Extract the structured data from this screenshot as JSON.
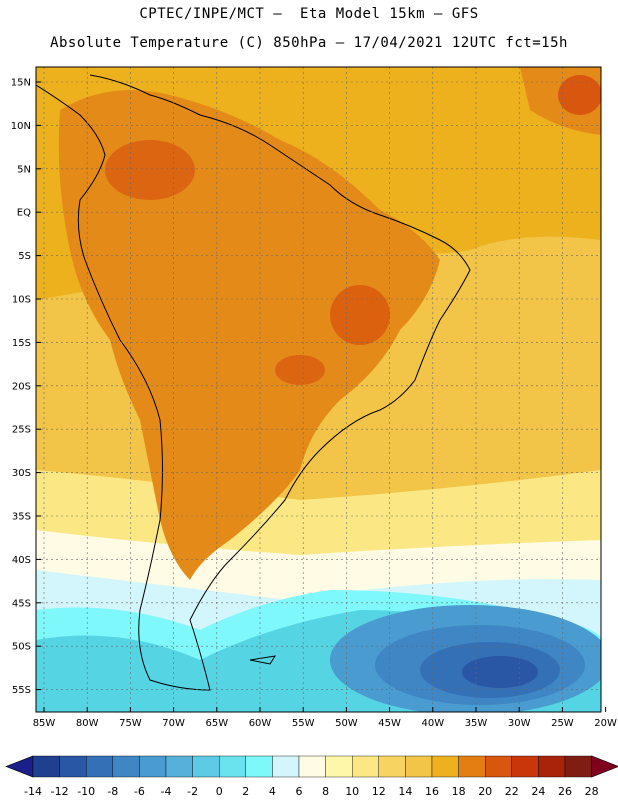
{
  "header": {
    "line1": "CPTEC/INPE/MCT —  Eta Model 15km — GFS",
    "line2": "Absolute Temperature (C) 850hPa — 17/04/2021 12UTC fct=15h"
  },
  "map": {
    "lat_labels": [
      "15N",
      "10N",
      "5N",
      "EQ",
      "5S",
      "10S",
      "15S",
      "20S",
      "25S",
      "30S",
      "35S",
      "40S",
      "45S",
      "50S",
      "55S"
    ],
    "lon_labels": [
      "85W",
      "80W",
      "75W",
      "70W",
      "65W",
      "60W",
      "55W",
      "50W",
      "45W",
      "40W",
      "35W",
      "30W",
      "25W",
      "20W"
    ]
  },
  "colorbar": {
    "labels": [
      "-14",
      "-12",
      "-10",
      "-8",
      "-6",
      "-4",
      "-2",
      "0",
      "2",
      "4",
      "6",
      "8",
      "10",
      "12",
      "14",
      "16",
      "18",
      "20",
      "22",
      "24",
      "26",
      "28"
    ],
    "colors": [
      "#1f3f8f",
      "#2a56a6",
      "#3470b6",
      "#3e86c4",
      "#4a9bcf",
      "#56b1da",
      "#5ecbe4",
      "#6ae3ee",
      "#7ff8fb",
      "#d2f6fb",
      "#fffbe4",
      "#fff7a8",
      "#fbe884",
      "#f7d462",
      "#f2c447",
      "#eeb11e",
      "#e47d12",
      "#d9560e",
      "#c8360a",
      "#a8230a",
      "#7f1d12"
    ],
    "low_arrow": "#1a1f8a",
    "high_arrow": "#800020"
  },
  "regions": {
    "ocean_south": "#55d4e4",
    "ocean_deep": "#2e6db3",
    "ocean_cool": "#d2f6fb",
    "continent_hot": "#e48a18",
    "continent_warm": "#eeb11e",
    "ocean_warm": "#f2c447",
    "yellow_band": "#fbe884"
  }
}
